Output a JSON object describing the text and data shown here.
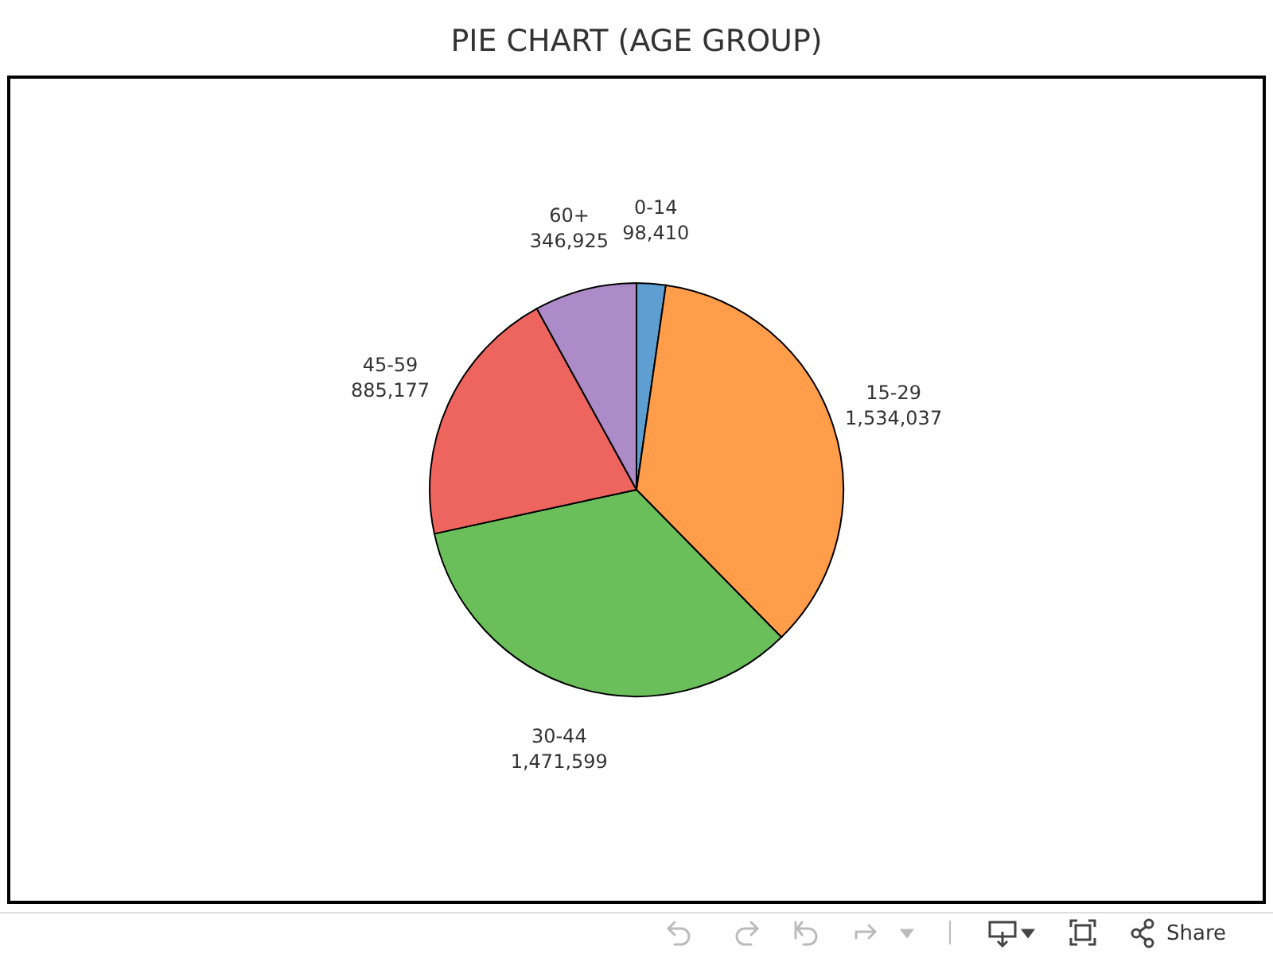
{
  "chart_data": {
    "type": "pie",
    "title": "PIE CHART (AGE GROUP)",
    "categories": [
      "0-14",
      "15-29",
      "30-44",
      "45-59",
      "60+"
    ],
    "values": [
      98410,
      1534037,
      1471599,
      885177,
      346925
    ],
    "colors": [
      "#5f9ed1",
      "#ff9d4a",
      "#6abf5a",
      "#ee6560",
      "#ad8bc9"
    ],
    "value_labels": [
      "98,410",
      "1,534,037",
      "1,471,599",
      "885,177",
      "346,925"
    ],
    "annotations": [
      "Share"
    ]
  }
}
